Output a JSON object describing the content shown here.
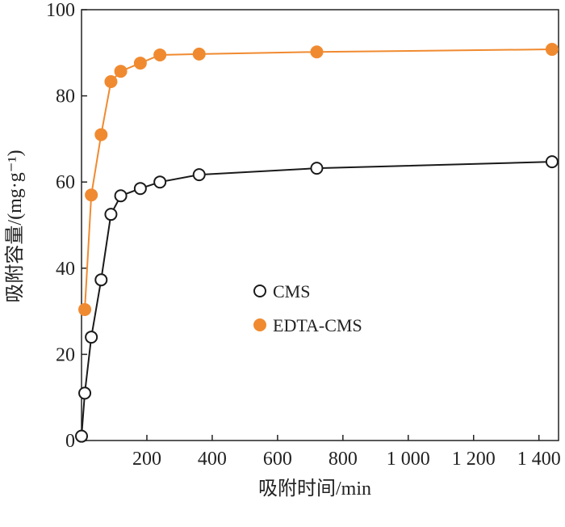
{
  "chart_data": {
    "type": "line",
    "x_label": "吸附时间/min",
    "y_label": "吸附容量/(mg·g⁻¹)",
    "xlim": [
      0,
      1460
    ],
    "ylim": [
      0,
      100
    ],
    "xticks": [
      200,
      400,
      600,
      800,
      {
        "value": 1000,
        "label": "1 000"
      },
      {
        "value": 1200,
        "label": "1 200"
      },
      {
        "value": 1400,
        "label": "1 400"
      }
    ],
    "yticks": [
      0,
      20,
      40,
      60,
      80,
      100
    ],
    "series": [
      {
        "name": "CMS",
        "color": "#1a1a1a",
        "marker": "open",
        "x": [
          0,
          10,
          30,
          60,
          90,
          120,
          180,
          240,
          360,
          720,
          1440
        ],
        "values": [
          1,
          11,
          24,
          37.3,
          52.5,
          56.8,
          58.5,
          60,
          61.7,
          63.2,
          64.7
        ]
      },
      {
        "name": "EDTA-CMS",
        "color": "#f08a30",
        "marker": "filled",
        "x": [
          10,
          30,
          60,
          90,
          120,
          180,
          240,
          360,
          720,
          1440
        ],
        "values": [
          30.4,
          57,
          71,
          83.3,
          85.7,
          87.6,
          89.5,
          89.7,
          90.2,
          90.8
        ]
      }
    ]
  }
}
